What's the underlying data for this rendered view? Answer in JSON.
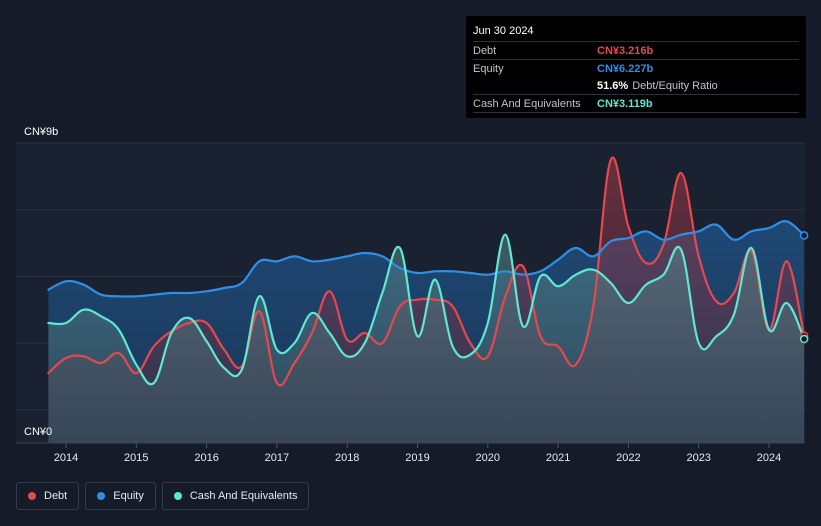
{
  "tooltip": {
    "date": "Jun 30 2024",
    "debt_label": "Debt",
    "debt_value": "CN¥3.216b",
    "equity_label": "Equity",
    "equity_value": "CN¥6.227b",
    "ratio_value": "51.6%",
    "ratio_label": "Debt/Equity Ratio",
    "cash_label": "Cash And Equivalents",
    "cash_value": "CN¥3.119b"
  },
  "legend": [
    {
      "label": "Debt",
      "color": "#e5484d"
    },
    {
      "label": "Equity",
      "color": "#2f8fe6"
    },
    {
      "label": "Cash And Equivalents",
      "color": "#5ee8d2"
    }
  ],
  "colors": {
    "debt": "#e5484d",
    "equity": "#2f8fe6",
    "cash": "#5ee8d2",
    "background": "#151b28"
  },
  "chart_data": {
    "type": "area",
    "ylim": [
      0,
      9
    ],
    "y_ticks": [
      "CN¥0",
      "CN¥9b"
    ],
    "x_ticks": [
      "2014",
      "2015",
      "2016",
      "2017",
      "2018",
      "2019",
      "2020",
      "2021",
      "2022",
      "2023",
      "2024"
    ],
    "grid": true,
    "legend_placement": "bottom-left",
    "series": [
      {
        "name": "Debt",
        "unit": "CN¥b",
        "x": [
          2013.75,
          2014.0,
          2014.25,
          2014.5,
          2014.75,
          2015.0,
          2015.25,
          2015.5,
          2015.75,
          2016.0,
          2016.25,
          2016.5,
          2016.75,
          2017.0,
          2017.25,
          2017.5,
          2017.75,
          2018.0,
          2018.25,
          2018.5,
          2018.75,
          2019.0,
          2019.25,
          2019.5,
          2019.75,
          2020.0,
          2020.25,
          2020.5,
          2020.75,
          2021.0,
          2021.25,
          2021.5,
          2021.75,
          2022.0,
          2022.25,
          2022.5,
          2022.75,
          2023.0,
          2023.25,
          2023.5,
          2023.75,
          2024.0,
          2024.25,
          2024.5
        ],
        "values": [
          2.1,
          2.55,
          2.6,
          2.4,
          2.7,
          2.1,
          2.9,
          3.35,
          3.6,
          3.6,
          2.8,
          2.3,
          3.95,
          1.8,
          2.4,
          3.3,
          4.55,
          3.1,
          3.3,
          3.0,
          4.1,
          4.3,
          4.3,
          4.1,
          3.0,
          2.6,
          4.4,
          5.3,
          3.2,
          2.9,
          2.35,
          4.1,
          8.5,
          6.5,
          5.4,
          5.95,
          8.1,
          5.6,
          4.25,
          4.5,
          5.75,
          3.4,
          5.45,
          3.216
        ]
      },
      {
        "name": "Equity",
        "unit": "CN¥b",
        "x": [
          2013.75,
          2014.0,
          2014.25,
          2014.5,
          2014.75,
          2015.0,
          2015.25,
          2015.5,
          2015.75,
          2016.0,
          2016.25,
          2016.5,
          2016.75,
          2017.0,
          2017.25,
          2017.5,
          2017.75,
          2018.0,
          2018.25,
          2018.5,
          2018.75,
          2019.0,
          2019.25,
          2019.5,
          2019.75,
          2020.0,
          2020.25,
          2020.5,
          2020.75,
          2021.0,
          2021.25,
          2021.5,
          2021.75,
          2022.0,
          2022.25,
          2022.5,
          2022.75,
          2023.0,
          2023.25,
          2023.5,
          2023.75,
          2024.0,
          2024.25,
          2024.5
        ],
        "values": [
          4.6,
          4.85,
          4.75,
          4.45,
          4.4,
          4.4,
          4.45,
          4.5,
          4.5,
          4.55,
          4.65,
          4.8,
          5.45,
          5.45,
          5.6,
          5.45,
          5.5,
          5.6,
          5.7,
          5.6,
          5.25,
          5.1,
          5.15,
          5.15,
          5.1,
          5.05,
          5.15,
          5.05,
          5.15,
          5.5,
          5.85,
          5.6,
          6.05,
          6.15,
          6.35,
          6.1,
          6.25,
          6.35,
          6.55,
          6.1,
          6.35,
          6.45,
          6.65,
          6.227
        ]
      },
      {
        "name": "Cash And Equivalents",
        "unit": "CN¥b",
        "x": [
          2013.75,
          2014.0,
          2014.25,
          2014.5,
          2014.75,
          2015.0,
          2015.25,
          2015.5,
          2015.75,
          2016.0,
          2016.25,
          2016.5,
          2016.75,
          2017.0,
          2017.25,
          2017.5,
          2017.75,
          2018.0,
          2018.25,
          2018.5,
          2018.75,
          2019.0,
          2019.25,
          2019.5,
          2019.75,
          2020.0,
          2020.25,
          2020.5,
          2020.75,
          2021.0,
          2021.25,
          2021.5,
          2021.75,
          2022.0,
          2022.25,
          2022.5,
          2022.75,
          2023.0,
          2023.25,
          2023.5,
          2023.75,
          2024.0,
          2024.25,
          2024.5
        ],
        "values": [
          3.6,
          3.6,
          4.0,
          3.8,
          3.4,
          2.35,
          1.8,
          3.3,
          3.75,
          3.05,
          2.25,
          2.2,
          4.4,
          2.8,
          3.0,
          3.9,
          3.3,
          2.6,
          3.0,
          4.5,
          5.85,
          3.2,
          4.9,
          2.9,
          2.65,
          3.6,
          6.25,
          3.5,
          5.0,
          4.7,
          5.05,
          5.2,
          4.8,
          4.2,
          4.75,
          5.05,
          5.8,
          3.0,
          3.2,
          3.85,
          5.85,
          3.4,
          4.2,
          3.119
        ]
      }
    ]
  }
}
